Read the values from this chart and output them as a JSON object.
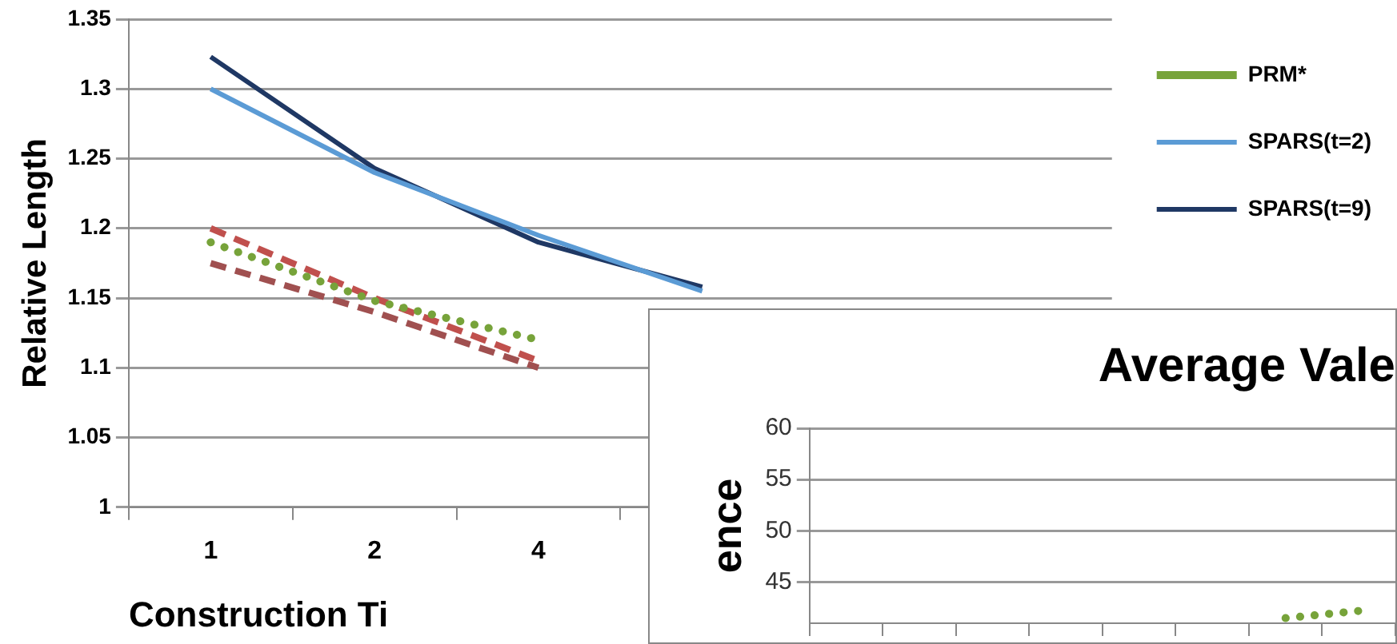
{
  "chart_data": [
    {
      "type": "line",
      "xlabel": "Construction Ti",
      "ylabel": "Relative Length",
      "categories": [
        "1",
        "2",
        "4",
        null,
        null,
        null
      ],
      "ylim": [
        1,
        1.35
      ],
      "yticks": [
        1,
        1.05,
        1.1,
        1.15,
        1.2,
        1.25,
        1.3,
        1.35
      ],
      "grid": "y",
      "legend": "right",
      "series": [
        {
          "name": "PRM*",
          "color": "#77a33a",
          "line_style": "dotted",
          "values": [
            1.19,
            1.148,
            1.12,
            null,
            null,
            null
          ]
        },
        {
          "name": "SPARS(t=2)",
          "color": "#5b9bd5",
          "line_style": "solid",
          "values": [
            1.3,
            1.24,
            1.195,
            1.155,
            null,
            null
          ]
        },
        {
          "name": "SPARS(t=9)",
          "color": "#1f3864",
          "line_style": "solid",
          "values": [
            1.323,
            1.243,
            1.19,
            1.158,
            null,
            null
          ]
        },
        {
          "color": "#c0504d",
          "line_style": "dashed",
          "values": [
            1.2,
            1.15,
            1.105,
            null,
            null,
            null
          ]
        },
        {
          "color": "#a05050",
          "line_style": "dashed",
          "values": [
            1.175,
            1.14,
            1.1,
            null,
            null,
            null
          ]
        }
      ]
    },
    {
      "type": "line",
      "title": "Average Vale",
      "ylabel": "ence",
      "categories": [
        null,
        null,
        null,
        null,
        null,
        null,
        null,
        null
      ],
      "ylim": [
        41,
        60
      ],
      "yticks": [
        45,
        50,
        55,
        60
      ],
      "grid": "y",
      "tick_labels": "y",
      "series": [
        {
          "color": "#77a33a",
          "line_style": "dotted",
          "values": [
            null,
            null,
            null,
            null,
            null,
            null,
            41.5,
            42.2
          ]
        }
      ]
    }
  ]
}
